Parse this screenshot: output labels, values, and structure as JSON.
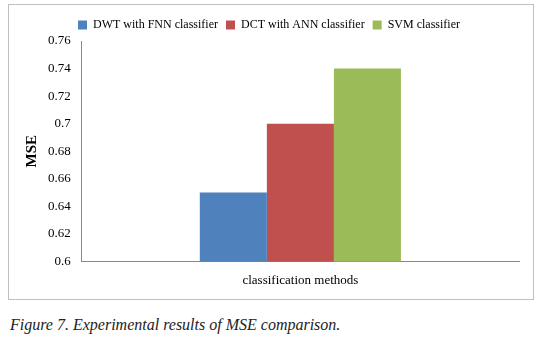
{
  "chart_data": {
    "type": "bar",
    "caption": "Figure 7. Experimental results of MSE comparison.",
    "y_label": "MSE",
    "categories": [
      "classification methods"
    ],
    "series": [
      {
        "name": "DWT with FNN classifier",
        "color": "#4f81bd",
        "values": [
          0.65
        ]
      },
      {
        "name": "DCT with ANN classifier",
        "color": "#c0504d",
        "values": [
          0.7
        ]
      },
      {
        "name": "SVM classifier",
        "color": "#9bbb59",
        "values": [
          0.74
        ]
      }
    ],
    "ylim": [
      0.6,
      0.76
    ],
    "yticks": [
      0.6,
      0.62,
      0.64,
      0.66,
      0.68,
      0.7,
      0.72,
      0.74,
      0.76
    ],
    "grid": false,
    "legend": "top"
  }
}
